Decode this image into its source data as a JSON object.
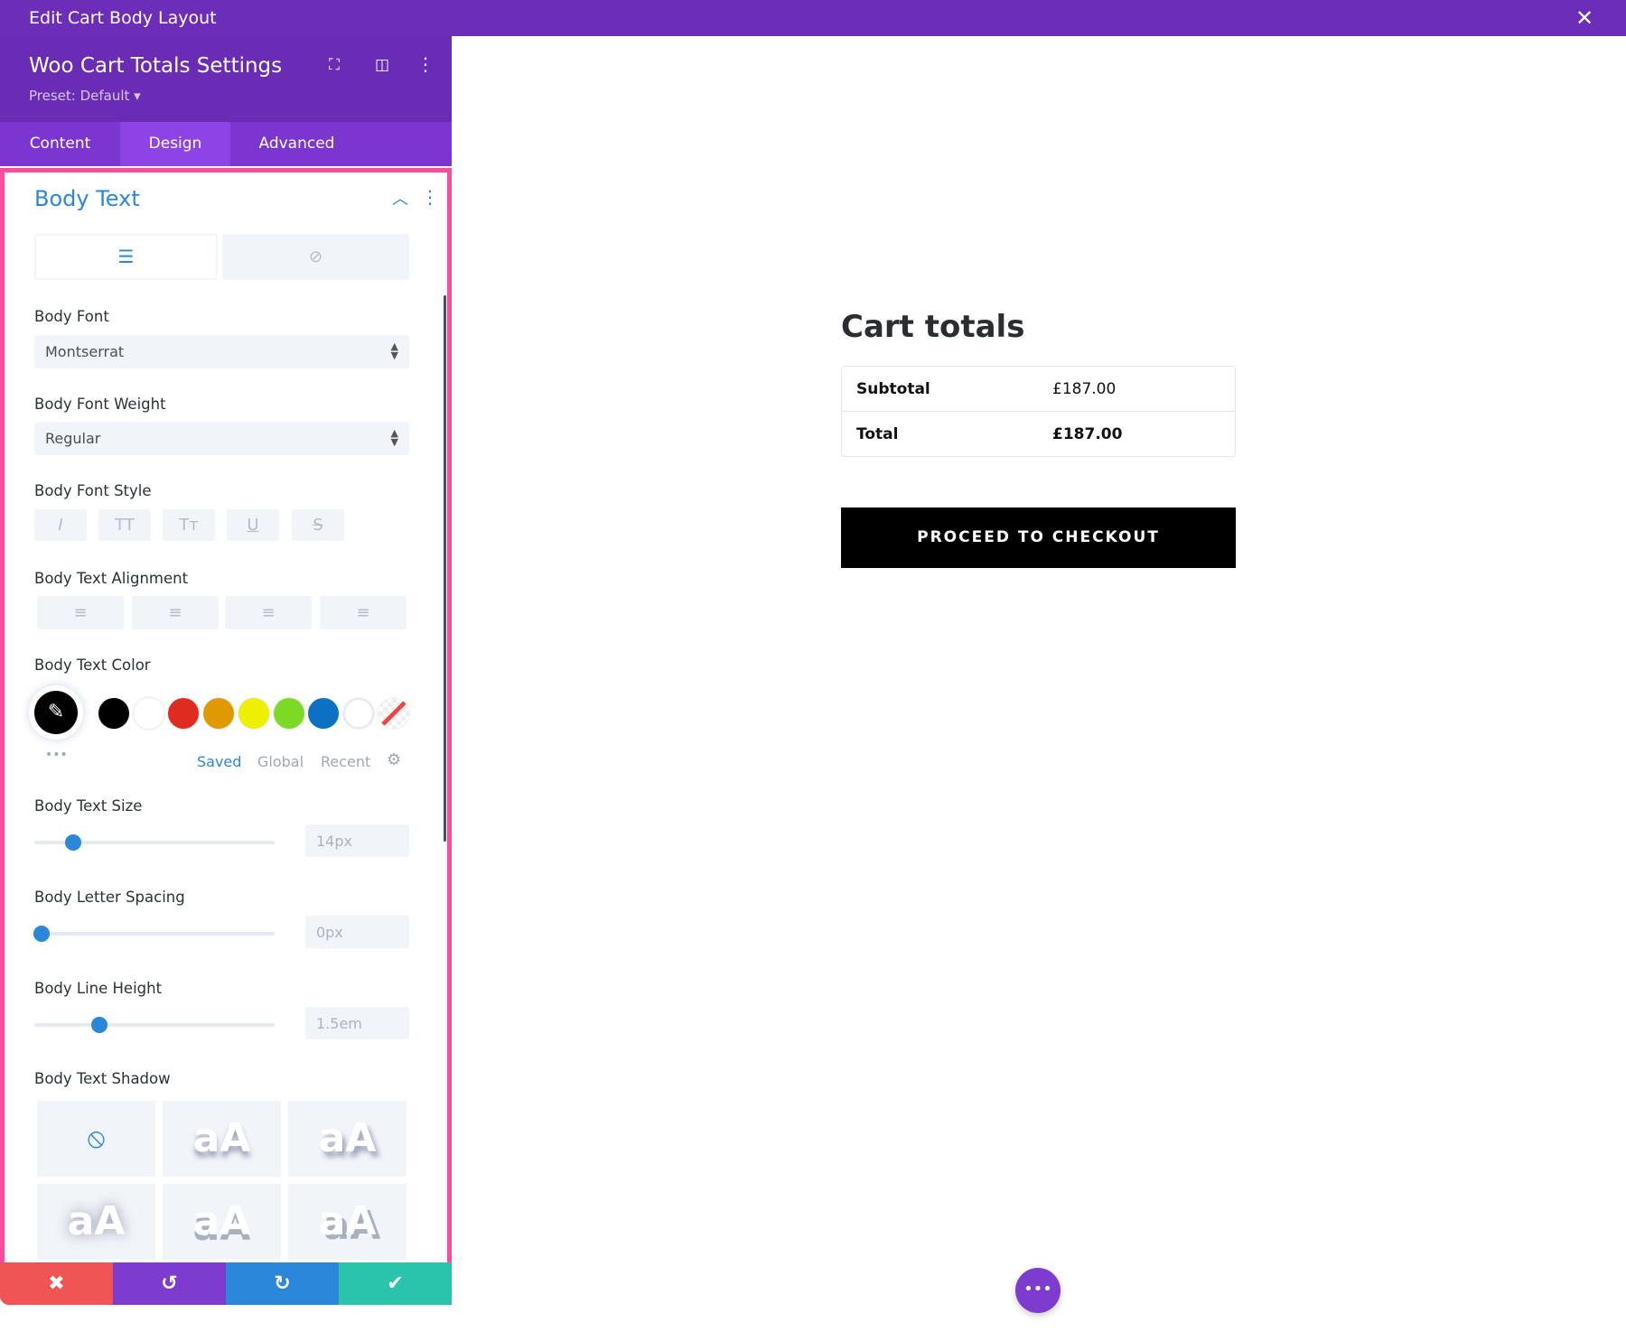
{
  "window": {
    "title": "Edit Cart Body Layout",
    "close_icon": "close-icon"
  },
  "panel": {
    "title": "Woo Cart Totals Settings",
    "preset": "Preset: Default ▾",
    "header_icons": [
      "focus-icon",
      "split-view-icon",
      "more-vertical-icon"
    ],
    "tabs": [
      {
        "label": "Content"
      },
      {
        "label": "Design",
        "active": true
      },
      {
        "label": "Advanced"
      }
    ],
    "section_title": "Body Text",
    "body_font": {
      "label": "Body Font",
      "value": "Montserrat"
    },
    "body_font_weight": {
      "label": "Body Font Weight",
      "value": "Regular"
    },
    "body_font_style": {
      "label": "Body Font Style",
      "buttons": [
        "I",
        "TT",
        "Tт",
        "U",
        "S"
      ]
    },
    "body_text_alignment": {
      "label": "Body Text Alignment",
      "options": [
        "left",
        "center",
        "right",
        "justify"
      ]
    },
    "body_text_color": {
      "label": "Body Text Color",
      "selected": "#000000",
      "swatches": [
        "#000000",
        "#ffffff",
        "#e02b20",
        "#e09900",
        "#edf000",
        "#7cda24",
        "#0c71c3",
        "#ffffff",
        "transparent"
      ],
      "tabs": {
        "saved": "Saved",
        "global": "Global",
        "recent": "Recent"
      }
    },
    "body_text_size": {
      "label": "Body Text Size",
      "value": "14px",
      "fraction": 0.16
    },
    "body_letter_spacing": {
      "label": "Body Letter Spacing",
      "value": "0px",
      "fraction": 0.03
    },
    "body_line_height": {
      "label": "Body Line Height",
      "value": "1.5em",
      "fraction": 0.27
    },
    "body_text_shadow": {
      "label": "Body Text Shadow",
      "preview_text": "aA"
    },
    "footer_buttons": [
      {
        "name": "discard",
        "color": "#ef5555"
      },
      {
        "name": "undo",
        "color": "#7e3bd0"
      },
      {
        "name": "redo",
        "color": "#2b87da"
      },
      {
        "name": "save",
        "color": "#29c4a9"
      }
    ]
  },
  "cart": {
    "title": "Cart totals",
    "rows": [
      {
        "label": "Subtotal",
        "value": "£187.00"
      },
      {
        "label": "Total",
        "value": "£187.00"
      }
    ],
    "checkout_label": "PROCEED TO CHECKOUT"
  }
}
